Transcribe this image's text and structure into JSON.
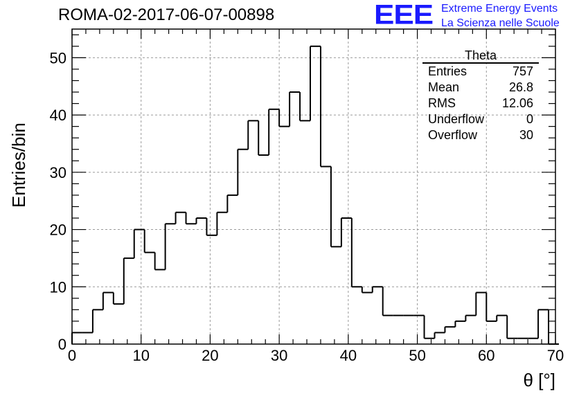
{
  "title": "ROMA-02-2017-06-07-00898",
  "logo": {
    "mark": "EEE",
    "line1": "Extreme Energy Events",
    "line2": "La Scienza nelle Scuole",
    "color": "#1a1aff"
  },
  "stats": {
    "name": "Theta",
    "rows": [
      {
        "label": "Entries",
        "value": "757"
      },
      {
        "label": "Mean",
        "value": "26.8"
      },
      {
        "label": "RMS",
        "value": "12.06"
      },
      {
        "label": "Underflow",
        "value": "0"
      },
      {
        "label": "Overflow",
        "value": "30"
      }
    ]
  },
  "chart_data": {
    "type": "bar",
    "style": "step-histogram",
    "xlabel": "θ [°]",
    "ylabel": "Entries/bin",
    "xlim": [
      0,
      70
    ],
    "ylim": [
      0,
      55
    ],
    "grid": true,
    "bin_width": 1.5,
    "bin_start": 0,
    "values": [
      2,
      2,
      6,
      9,
      7,
      15,
      20,
      16,
      13,
      21,
      23,
      21,
      22,
      19,
      23,
      26,
      34,
      39,
      33,
      41,
      38,
      44,
      39,
      52,
      31,
      17,
      22,
      10,
      9,
      10,
      5,
      5,
      5,
      5,
      1,
      2,
      3,
      4,
      5,
      9,
      4,
      5,
      1,
      1,
      1,
      6,
      0
    ],
    "xticks": [
      "0",
      "10",
      "20",
      "30",
      "40",
      "50",
      "60",
      "70"
    ],
    "yticks": [
      "0",
      "10",
      "20",
      "30",
      "40",
      "50"
    ]
  }
}
